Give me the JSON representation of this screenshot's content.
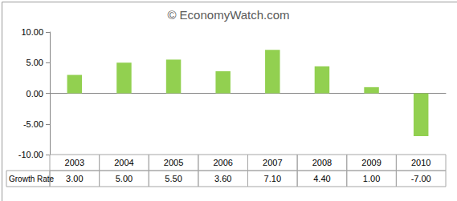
{
  "chart_data": {
    "type": "bar",
    "title": "© EconomyWatch.com",
    "categories": [
      "2003",
      "2004",
      "2005",
      "2006",
      "2007",
      "2008",
      "2009",
      "2010"
    ],
    "series": [
      {
        "name": "Growth Rate",
        "color": "#92d050",
        "values": [
          3,
          5,
          5.5,
          3.6,
          7.1,
          4.4,
          1,
          -7
        ],
        "value_labels": [
          "3.00",
          "5.00",
          "5.50",
          "3.60",
          "7.10",
          "4.40",
          "1.00",
          "-7.00"
        ]
      }
    ],
    "ylim": [
      -10,
      10
    ],
    "yticks": [
      {
        "value": -10,
        "label": "-10.00"
      },
      {
        "value": -5,
        "label": "-5.00"
      },
      {
        "value": 0,
        "label": "0.00"
      },
      {
        "value": 5,
        "label": "5.00"
      },
      {
        "value": 10,
        "label": "10.00"
      }
    ],
    "grid": false
  }
}
